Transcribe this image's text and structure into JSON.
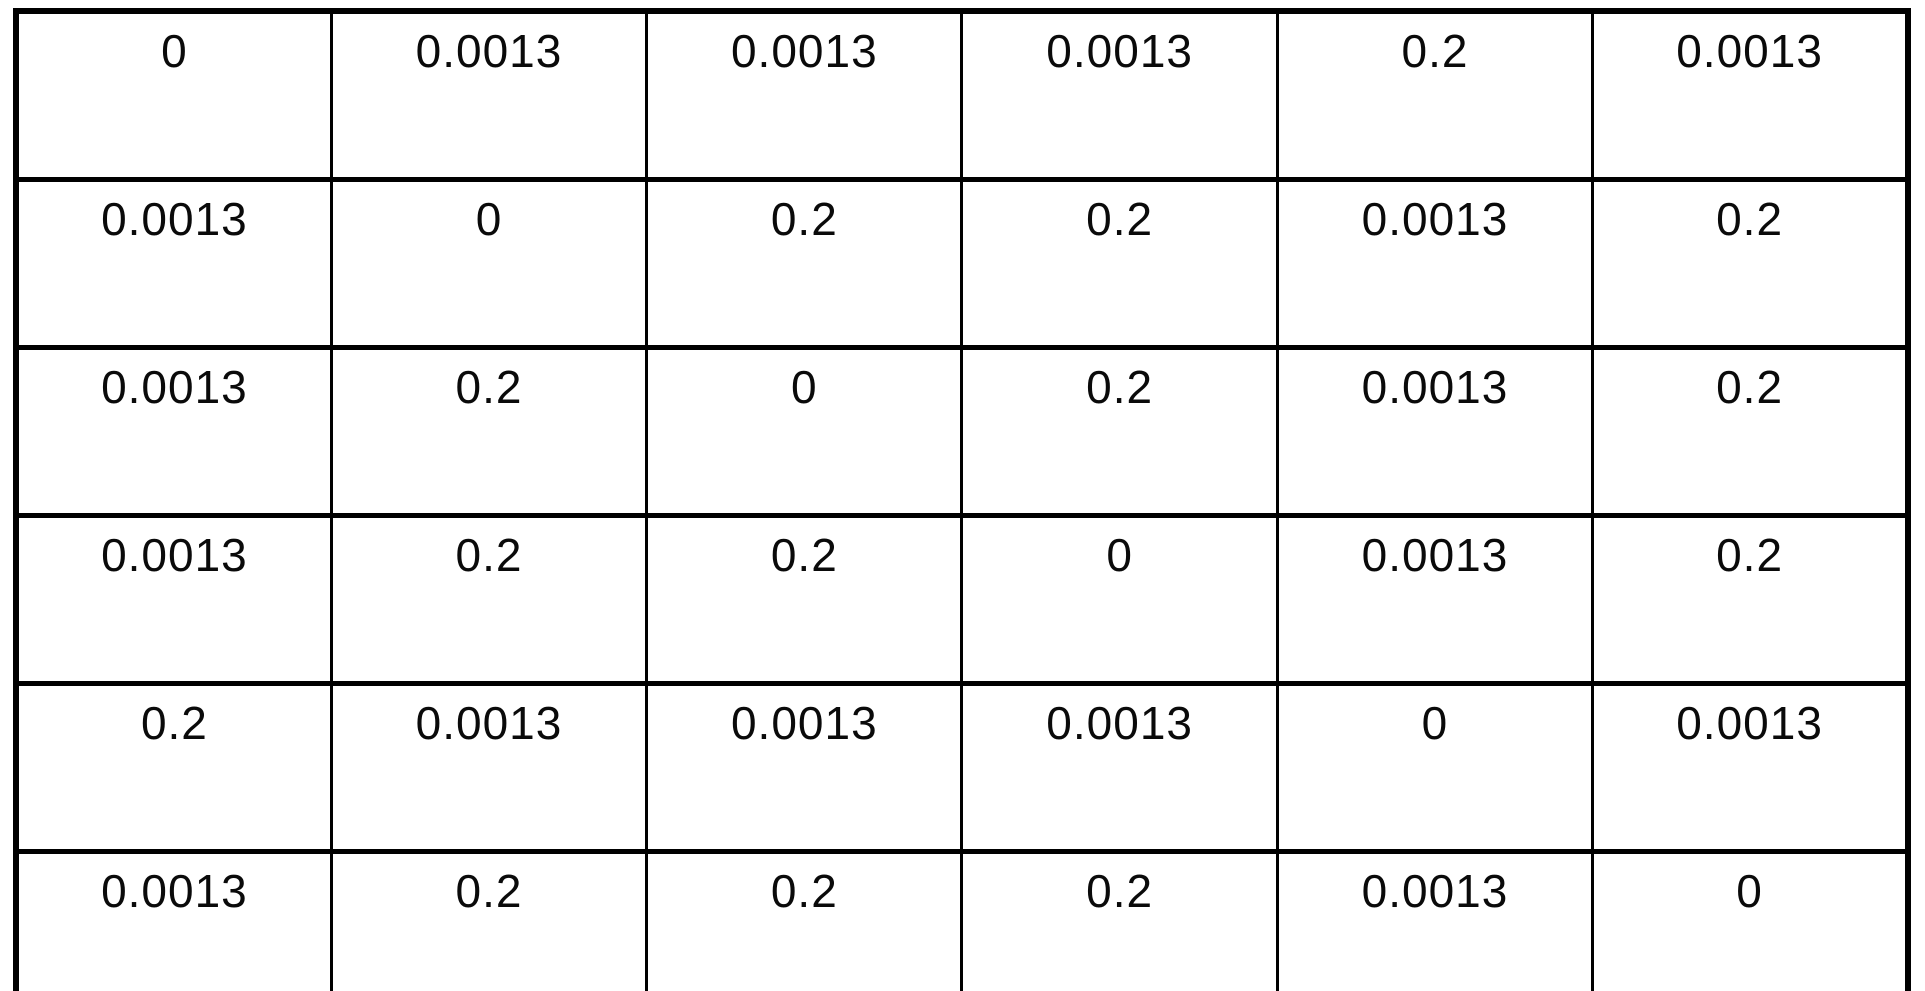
{
  "colors": {
    "background": "#ffffff",
    "border": "#000000",
    "text": "#0a0a0a"
  },
  "matrix": {
    "rows": [
      [
        "0",
        "0.0013",
        "0.0013",
        "0.0013",
        "0.2",
        "0.0013"
      ],
      [
        "0.0013",
        "0",
        "0.2",
        "0.2",
        "0.0013",
        "0.2"
      ],
      [
        "0.0013",
        "0.2",
        "0",
        "0.2",
        "0.0013",
        "0.2"
      ],
      [
        "0.0013",
        "0.2",
        "0.2",
        "0",
        "0.0013",
        "0.2"
      ],
      [
        "0.2",
        "0.0013",
        "0.0013",
        "0.0013",
        "0",
        "0.0013"
      ],
      [
        "0.0013",
        "0.2",
        "0.2",
        "0.2",
        "0.0013",
        "0"
      ]
    ]
  }
}
